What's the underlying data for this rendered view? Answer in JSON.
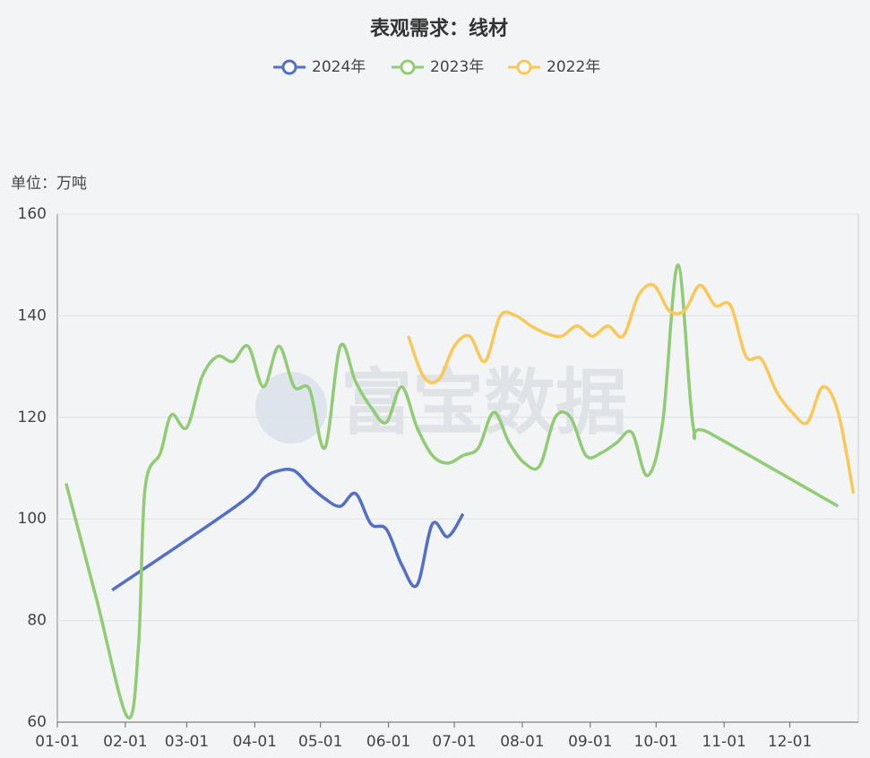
{
  "chart_data": {
    "type": "line",
    "title": "表观需求：线材",
    "y_label": "单位：万吨",
    "watermark": "富宝数据",
    "xlim": [
      "01-01",
      "12-31"
    ],
    "xticks": [
      "01-01",
      "02-01",
      "03-01",
      "04-01",
      "05-01",
      "06-01",
      "07-01",
      "08-01",
      "09-01",
      "10-01",
      "11-01",
      "12-01"
    ],
    "ylim": [
      60,
      160
    ],
    "yticks": [
      60,
      80,
      100,
      120,
      140,
      160
    ],
    "grid": true,
    "legend": "top",
    "smooth": true,
    "series": [
      {
        "name": "2024年",
        "color": "#5470c6",
        "x": [
          "01-26",
          "03-25",
          "04-05",
          "04-12",
          "04-19",
          "04-26",
          "05-03",
          "05-10",
          "05-17",
          "05-24",
          "05-31",
          "06-07",
          "06-14",
          "06-21",
          "06-28",
          "07-05"
        ],
        "values": [
          86,
          103,
          108,
          109.5,
          109.5,
          106.5,
          104,
          102.5,
          105,
          99,
          98,
          91,
          87,
          99,
          96.5,
          101
        ]
      },
      {
        "name": "2023年",
        "color": "#91cc75",
        "x": [
          "01-05",
          "01-19",
          "02-02",
          "02-07",
          "02-10",
          "02-17",
          "02-22",
          "03-01",
          "03-08",
          "03-15",
          "03-22",
          "03-29",
          "04-05",
          "04-12",
          "04-19",
          "04-26",
          "05-03",
          "05-10",
          "05-17",
          "05-24",
          "05-31",
          "06-07",
          "06-14",
          "06-21",
          "06-28",
          "07-05",
          "07-12",
          "07-19",
          "07-26",
          "08-02",
          "08-09",
          "08-16",
          "08-23",
          "08-30",
          "09-06",
          "09-13",
          "09-20",
          "09-27",
          "10-04",
          "10-11",
          "10-18",
          "10-25",
          "12-23"
        ],
        "values": [
          107,
          84,
          61,
          75,
          106,
          113,
          120.5,
          118,
          128,
          132,
          131,
          134,
          126,
          134,
          126,
          125.5,
          114,
          134,
          127,
          122,
          119,
          126,
          118,
          112.5,
          111,
          112.5,
          114,
          121,
          115,
          111,
          110.5,
          120,
          120,
          112.5,
          113,
          115,
          117,
          108.5,
          119,
          150,
          118,
          117,
          102.5
        ]
      },
      {
        "name": "2022年",
        "color": "#fac858",
        "x": [
          "06-10",
          "06-17",
          "06-24",
          "07-01",
          "07-08",
          "07-15",
          "07-22",
          "07-29",
          "08-05",
          "08-12",
          "08-19",
          "08-26",
          "09-02",
          "09-09",
          "09-16",
          "09-23",
          "09-30",
          "10-07",
          "10-14",
          "10-21",
          "10-28",
          "11-04",
          "11-11",
          "11-18",
          "11-25",
          "12-02",
          "12-09",
          "12-16",
          "12-23",
          "12-30"
        ],
        "values": [
          136,
          128,
          127.5,
          134,
          136,
          131,
          140,
          140,
          138,
          136.5,
          136,
          138,
          136,
          138,
          136,
          144,
          146,
          141,
          141,
          146,
          142,
          142,
          132,
          131.5,
          125,
          121,
          119,
          126,
          121,
          105
        ]
      }
    ]
  }
}
